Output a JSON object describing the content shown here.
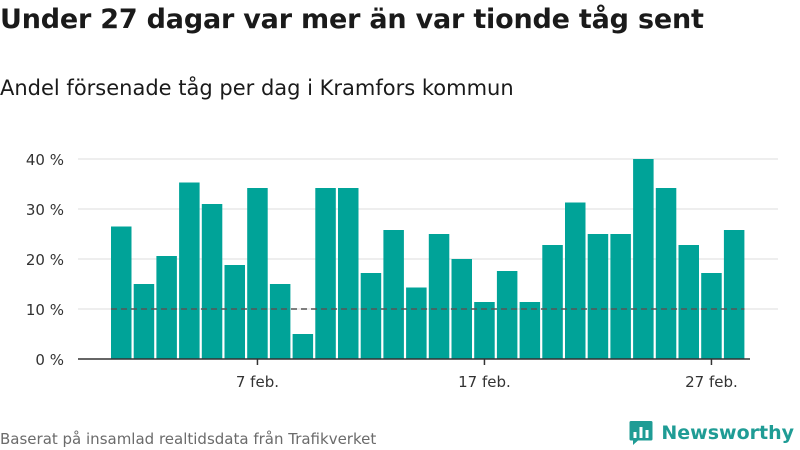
{
  "title": "Under 27 dagar var mer än var tionde tåg sent",
  "subtitle": "Andel försenade tåg per dag i Kramfors kommun",
  "footer": "Baserat på insamlad realtidsdata från Trafikverket",
  "brand": {
    "name": "Newsworthy",
    "icon": "bar-chart-speech-bubble-icon"
  },
  "colors": {
    "bar": "#00a398",
    "grid": "#dddddd",
    "axis": "#333333",
    "reference": "#555555",
    "brand": "#1f9c95"
  },
  "chart_data": {
    "type": "bar",
    "x_ticks": [
      "7 feb.",
      "17 feb.",
      "27 feb."
    ],
    "x_tick_day_index": [
      6,
      16,
      26
    ],
    "values": [
      26.5,
      15,
      20.6,
      35.3,
      31,
      18.8,
      34.2,
      15,
      5,
      34.2,
      34.2,
      17.2,
      25.8,
      14.3,
      25,
      20,
      11.4,
      17.6,
      11.4,
      22.8,
      31.3,
      25,
      25,
      40,
      34.2,
      22.8,
      17.2,
      25.8
    ],
    "ylim": [
      0,
      40
    ],
    "y_ticks": [
      "0 %",
      "10 %",
      "20 %",
      "30 %",
      "40 %"
    ],
    "y_tick_values": [
      0,
      10,
      20,
      30,
      40
    ],
    "reference_line": 10,
    "grid": true
  }
}
